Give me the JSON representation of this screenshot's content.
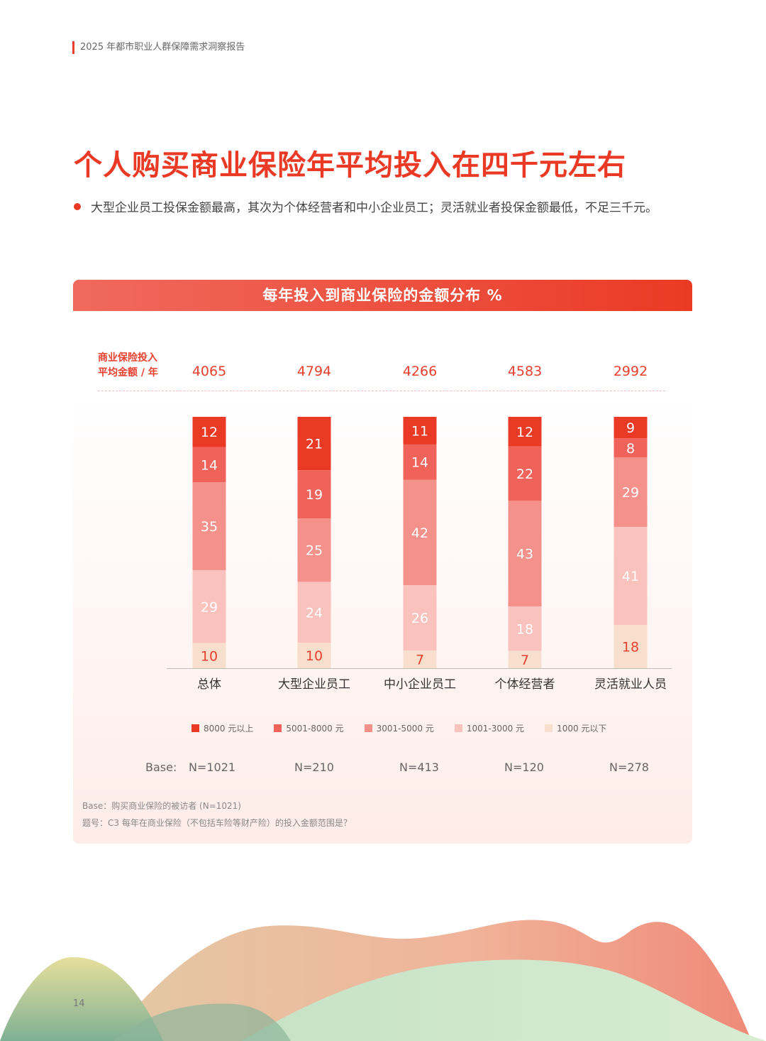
{
  "header": {
    "text": "2025 年都市职业人群保障需求洞察报告"
  },
  "title": "个人购买商业保险年平均投入在四千元左右",
  "bullet": "大型企业员工投保金额最高，其次为个体经营者和中小企业员工；灵活就业者投保金额最低，不足三千元。",
  "chart_title": "每年投入到商业保险的金额分布 %",
  "avg_label_line1": "商业保险投入",
  "avg_label_line2": "平均金额 / 年",
  "averages": [
    "4065",
    "4794",
    "4266",
    "4583",
    "2992"
  ],
  "base_label": "Base:",
  "bases": [
    "N=1021",
    "N=210",
    "N=413",
    "N=120",
    "N=278"
  ],
  "footnote_base": "Base：购买商业保险的被访者 (N=1021)",
  "footnote_question": "题号：C3 每年在商业保险（不包括车险等财产险）的投入金额范围是？",
  "page_number": "14",
  "colors": {
    "accent": "#ea3a25",
    "series": [
      "#ea3a25",
      "#f0635a",
      "#f4918b",
      "#f9c2bc",
      "#f8dfcd"
    ]
  },
  "chart_data": {
    "type": "bar",
    "stacked": true,
    "unit": "%",
    "categories": [
      "总体",
      "大型企业员工",
      "中小企业员工",
      "个体经营者",
      "灵活就业人员"
    ],
    "series": [
      {
        "name": "8000 元以上",
        "values": [
          12,
          21,
          11,
          12,
          9
        ]
      },
      {
        "name": "5001-8000 元",
        "values": [
          14,
          19,
          14,
          22,
          8
        ]
      },
      {
        "name": "3001-5000 元",
        "values": [
          35,
          25,
          42,
          43,
          29
        ]
      },
      {
        "name": "1001-3000 元",
        "values": [
          29,
          24,
          26,
          18,
          41
        ]
      },
      {
        "name": "1000 元以下",
        "values": [
          10,
          10,
          7,
          7,
          18
        ]
      }
    ],
    "legend_position": "bottom"
  }
}
